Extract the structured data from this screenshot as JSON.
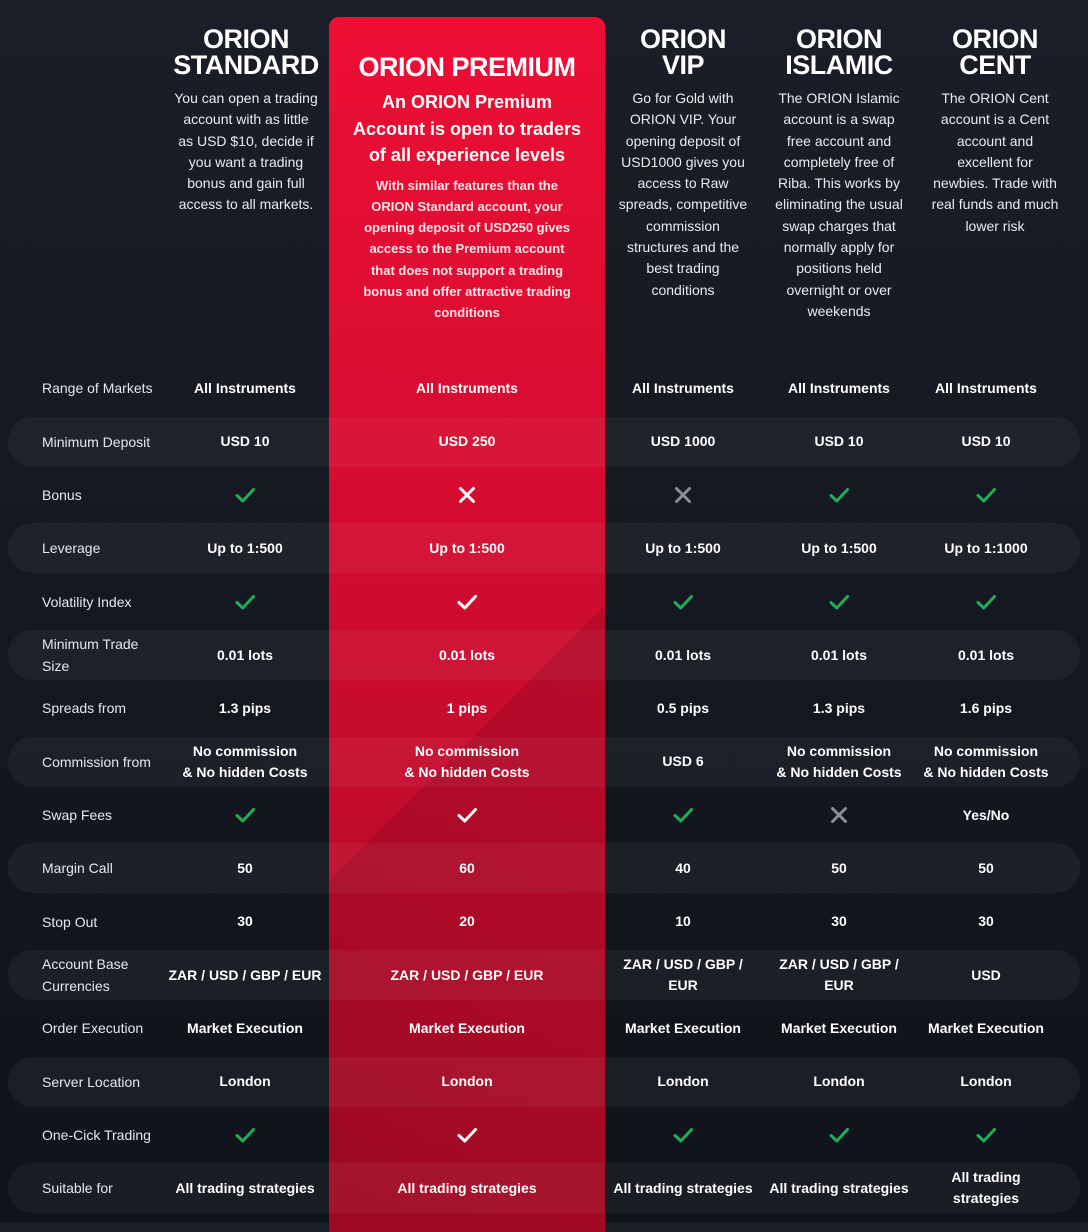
{
  "colors": {
    "check": "#1fae57",
    "cross_muted": "#8b8e96",
    "premium": "#e50f36",
    "mark_on_premium": "#ffffff"
  },
  "plans": [
    {
      "title": "ORION\nSTANDARD",
      "description": "You can open a trading\naccount with as little\nas USD $10, decide if\nyou want a trading\nbonus and gain full\naccess to all markets."
    },
    {
      "title": "ORION PREMIUM",
      "subtitle": "An ORION Premium\nAccount is open to traders\nof all experience levels",
      "description": "With similar features than the\nORION Standard account, your\nopening deposit of USD250 gives\naccess to the Premium account\nthat does not support a trading\nbonus and offer attractive trading\nconditions"
    },
    {
      "title": "ORION\nVIP",
      "description": "Go for Gold with\nORION VIP. Your\nopening deposit of\nUSD1000 gives you\naccess to Raw\nspreads, competitive\ncommission\nstructures and the\nbest trading\nconditions"
    },
    {
      "title": "ORION\nISLAMIC",
      "description": "The ORION Islamic\naccount is a swap\nfree account and\ncompletely free of\nRiba. This works by\neliminating the usual\nswap charges that\nnormally apply for\npositions held\novernight or over\nweekends"
    },
    {
      "title": "ORION\nCENT",
      "description": "The ORION Cent\naccount is a Cent\naccount and\nexcellent for\nnewbies. Trade with\nreal funds and much\nlower risk"
    }
  ],
  "rows": [
    {
      "label": "Range of Markets",
      "values": [
        "All Instruments",
        "All Instruments",
        "All Instruments",
        "All Instruments",
        "All Instruments"
      ]
    },
    {
      "label": "Minimum Deposit",
      "values": [
        "USD 10",
        "USD 250",
        "USD 1000",
        "USD 10",
        "USD 10"
      ]
    },
    {
      "label": "Bonus",
      "values": [
        "check-icon",
        "cross-icon",
        "cross-icon",
        "check-icon",
        "check-icon"
      ]
    },
    {
      "label": "Leverage",
      "values": [
        "Up to 1:500",
        "Up to 1:500",
        "Up to 1:500",
        "Up to 1:500",
        "Up to 1:1000"
      ]
    },
    {
      "label": "Volatility Index",
      "values": [
        "check-icon",
        "check-icon",
        "check-icon",
        "check-icon",
        "check-icon"
      ]
    },
    {
      "label": "Minimum Trade\nSize",
      "values": [
        "0.01 lots",
        "0.01 lots",
        "0.01 lots",
        "0.01 lots",
        "0.01 lots"
      ]
    },
    {
      "label": "Spreads from",
      "values": [
        "1.3 pips",
        "1 pips",
        "0.5 pips",
        "1.3 pips",
        "1.6 pips"
      ]
    },
    {
      "label": "Commission from",
      "values": [
        "No commission\n& No hidden Costs",
        "No commission\n& No hidden Costs",
        "USD 6",
        "No commission\n& No hidden Costs",
        "No commission\n& No hidden Costs"
      ]
    },
    {
      "label": "Swap Fees",
      "values": [
        "check-icon",
        "check-icon",
        "check-icon",
        "cross-icon",
        "Yes/No"
      ]
    },
    {
      "label": "Margin Call",
      "values": [
        "50",
        "60",
        "40",
        "50",
        "50"
      ]
    },
    {
      "label": "Stop Out",
      "values": [
        "30",
        "20",
        "10",
        "30",
        "30"
      ]
    },
    {
      "label": "Account Base\nCurrencies",
      "values": [
        "ZAR / USD / GBP / EUR",
        "ZAR / USD / GBP / EUR",
        "ZAR / USD / GBP /\nEUR",
        "ZAR / USD / GBP /\nEUR",
        "USD"
      ]
    },
    {
      "label": "Order Execution",
      "values": [
        "Market Execution",
        "Market Execution",
        "Market Execution",
        "Market Execution",
        "Market Execution"
      ]
    },
    {
      "label": "Server Location",
      "values": [
        "London",
        "London",
        "London",
        "London",
        "London"
      ]
    },
    {
      "label": "One-Cick Trading",
      "values": [
        "check-icon",
        "check-icon",
        "check-icon",
        "check-icon",
        "check-icon"
      ]
    },
    {
      "label": "Suitable for",
      "values": [
        "All trading strategies",
        "All trading strategies",
        "All trading strategies",
        "All trading strategies",
        "All trading\nstrategies"
      ]
    }
  ]
}
